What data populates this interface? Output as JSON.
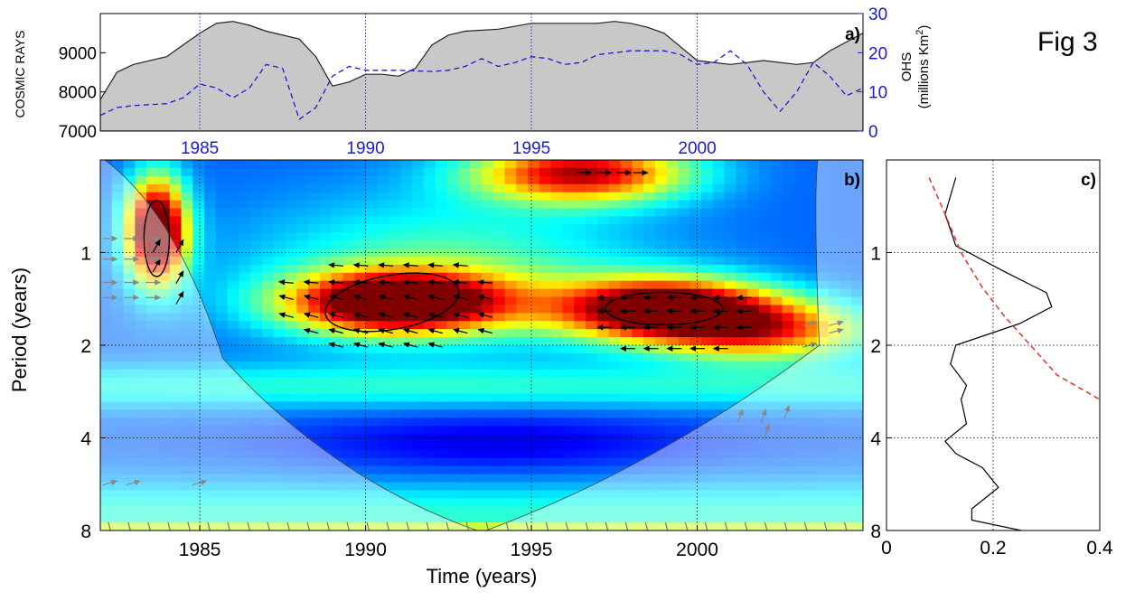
{
  "figure_label": "Fig 3",
  "colors": {
    "blue_axis": "#1a1ad6",
    "fill_grey": "#c8c8c8",
    "significance_red": "#e8302a"
  },
  "chart_data": [
    {
      "panel": "a)",
      "type": "area",
      "xlim": [
        1982,
        2005
      ],
      "x_ticks": [
        "1985",
        "1990",
        "1995",
        "2000"
      ],
      "ylabel": "COSMIC RAYS",
      "ylim": [
        7000,
        10000
      ],
      "y_ticks": [
        "7000",
        "8000",
        "9000"
      ],
      "y2label": "OHS",
      "y2label_sub": "(millions Km",
      "y2label_sup": "2",
      "y2label_end": ")",
      "y2lim": [
        0,
        30
      ],
      "y2_ticks": [
        "0",
        "10",
        "20",
        "30"
      ],
      "series": [
        {
          "style": "grey filled area",
          "x": [
            1982.0,
            1982.5,
            1983.0,
            1984.0,
            1984.5,
            1985.0,
            1985.5,
            1986.0,
            1986.5,
            1987.0,
            1988.0,
            1988.5,
            1989.0,
            1989.5,
            1990.0,
            1990.5,
            1991.0,
            1991.5,
            1992.0,
            1992.5,
            1993.0,
            1994.0,
            1995.0,
            1996.0,
            1997.0,
            1997.5,
            1998.0,
            1998.5,
            1999.0,
            2000.0,
            2001.0,
            2001.5,
            2002.0,
            2003.0,
            2003.5,
            2004.0,
            2005.0
          ],
          "values": [
            7800,
            8500,
            8700,
            8900,
            9200,
            9500,
            9750,
            9800,
            9700,
            9550,
            9350,
            8900,
            8150,
            8250,
            8450,
            8450,
            8400,
            8600,
            9200,
            9450,
            9550,
            9600,
            9750,
            9750,
            9750,
            9800,
            9750,
            9650,
            9500,
            8800,
            8700,
            8750,
            8800,
            8700,
            8750,
            9050,
            9500
          ]
        },
        {
          "style": "blue dashed line",
          "axis": "right",
          "x": [
            1982.0,
            1982.5,
            1983.0,
            1984.0,
            1984.5,
            1985.0,
            1985.5,
            1986.0,
            1986.5,
            1987.0,
            1987.5,
            1988.0,
            1988.5,
            1989.0,
            1989.5,
            1990.0,
            1991.0,
            1992.0,
            1992.5,
            1993.0,
            1993.5,
            1994.0,
            1994.5,
            1995.0,
            1995.5,
            1996.0,
            1996.5,
            1997.0,
            1998.0,
            1999.0,
            1999.5,
            2000.0,
            2000.5,
            2001.0,
            2001.5,
            2002.0,
            2002.5,
            2003.0,
            2003.5,
            2004.0,
            2004.5,
            2005.0
          ],
          "values": [
            4,
            6,
            6.5,
            7,
            8.5,
            12,
            11,
            8.5,
            11,
            17,
            16,
            3,
            6,
            14,
            16.5,
            15.5,
            15.5,
            15.2,
            15.5,
            16.5,
            18.5,
            16.5,
            17.5,
            19,
            18.5,
            17,
            17.5,
            19.5,
            20.5,
            20.5,
            19.5,
            17,
            17.5,
            20.5,
            17,
            10,
            5,
            10,
            17.5,
            14,
            9,
            11
          ]
        }
      ]
    },
    {
      "panel": "b)",
      "type": "heatmap",
      "description_type": "wavelet coherence",
      "xlabel": "Time (years)",
      "ylabel": "Period (years)",
      "xlim": [
        1982,
        2005
      ],
      "ylim": [
        0.5,
        8
      ],
      "y_scale": "log2",
      "x_ticks": [
        "1985",
        "1990",
        "1995",
        "2000"
      ],
      "y_ticks": [
        "1",
        "2",
        "4",
        "8"
      ],
      "colormap": "jet",
      "cone_of_influence": true,
      "hotspots": [
        {
          "t": 1983.7,
          "p": 0.85,
          "intensity": 1.0
        },
        {
          "t": 1991.0,
          "p": 1.45,
          "intensity": 0.95
        },
        {
          "t": 1999.0,
          "p": 1.52,
          "intensity": 0.92
        },
        {
          "t": 1996.5,
          "p": 0.55,
          "intensity": 0.72
        },
        {
          "t": 2002.0,
          "p": 1.8,
          "intensity": 0.55
        }
      ]
    },
    {
      "panel": "c)",
      "type": "line",
      "xlim": [
        0,
        0.4
      ],
      "x_ticks": [
        "0",
        "0.2",
        "0.4"
      ],
      "y_ticks": [
        "1",
        "2",
        "4",
        "8"
      ],
      "y_scale": "log2",
      "ylim": [
        0.5,
        8
      ],
      "series": [
        {
          "style": "black solid",
          "period": [
            0.57,
            0.75,
            0.95,
            1.15,
            1.35,
            1.5,
            1.7,
            2.0,
            2.3,
            2.7,
            3.0,
            3.6,
            4.1,
            4.5,
            5.0,
            5.8,
            6.8,
            7.4,
            8.6
          ],
          "power": [
            0.13,
            0.11,
            0.13,
            0.22,
            0.3,
            0.31,
            0.25,
            0.13,
            0.12,
            0.15,
            0.14,
            0.15,
            0.11,
            0.13,
            0.18,
            0.21,
            0.16,
            0.16,
            0.34
          ]
        },
        {
          "style": "red dashed",
          "period": [
            0.57,
            0.75,
            1.0,
            1.3,
            1.6,
            2.0,
            2.5,
            3.0
          ],
          "power": [
            0.08,
            0.11,
            0.14,
            0.18,
            0.22,
            0.27,
            0.32,
            0.4
          ]
        }
      ]
    }
  ]
}
